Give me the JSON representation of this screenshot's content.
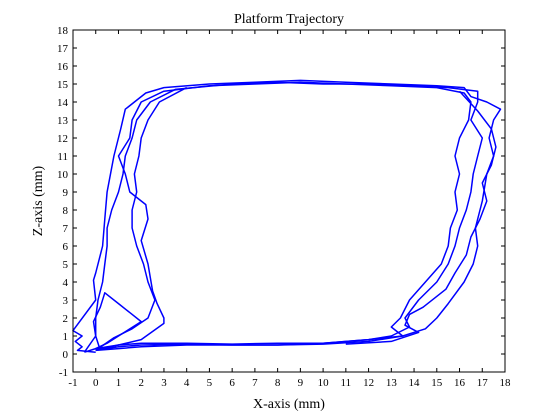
{
  "chart_data": {
    "type": "line",
    "title": "Platform Trajectory",
    "xlabel": "X-axis (mm)",
    "ylabel": "Z-axis (mm)",
    "xlim": [
      -1,
      18
    ],
    "ylim": [
      -1,
      18
    ],
    "xticks": [
      -1,
      0,
      1,
      2,
      3,
      4,
      5,
      6,
      7,
      8,
      9,
      10,
      11,
      12,
      13,
      14,
      15,
      16,
      17,
      18
    ],
    "yticks": [
      -1,
      0,
      1,
      2,
      3,
      4,
      5,
      6,
      7,
      8,
      9,
      10,
      11,
      12,
      13,
      14,
      15,
      16,
      17,
      18
    ],
    "grid": false,
    "series": [
      {
        "color": "#0000ff",
        "points": [
          [
            0.0,
            0.1
          ],
          [
            -0.8,
            0.2
          ],
          [
            -0.6,
            0.4
          ],
          [
            -0.9,
            0.7
          ],
          [
            -0.6,
            1.0
          ],
          [
            -1.0,
            1.3
          ],
          [
            0.0,
            3.0
          ],
          [
            -0.1,
            4.1
          ],
          [
            0.0,
            4.5
          ],
          [
            0.3,
            6.0
          ],
          [
            0.4,
            7.5
          ],
          [
            0.5,
            9.0
          ],
          [
            0.8,
            11.0
          ],
          [
            1.1,
            12.5
          ],
          [
            1.3,
            13.6
          ],
          [
            2.2,
            14.5
          ],
          [
            3.0,
            14.8
          ],
          [
            5.0,
            15.0
          ],
          [
            7.0,
            15.1
          ],
          [
            9.0,
            15.2
          ],
          [
            11.0,
            15.1
          ],
          [
            13.0,
            15.0
          ],
          [
            15.0,
            14.9
          ],
          [
            16.2,
            14.8
          ],
          [
            16.5,
            14.3
          ],
          [
            17.2,
            14.0
          ],
          [
            17.8,
            13.6
          ],
          [
            17.5,
            13.0
          ],
          [
            17.3,
            12.0
          ],
          [
            17.5,
            11.0
          ],
          [
            17.2,
            10.0
          ],
          [
            17.0,
            8.5
          ],
          [
            16.7,
            7.0
          ],
          [
            16.8,
            6.0
          ],
          [
            16.6,
            5.0
          ],
          [
            16.2,
            4.0
          ],
          [
            15.5,
            2.8
          ],
          [
            15.0,
            2.0
          ],
          [
            14.5,
            1.4
          ],
          [
            13.5,
            1.0
          ],
          [
            12.0,
            0.7
          ],
          [
            10.0,
            0.55
          ],
          [
            8.0,
            0.5
          ],
          [
            6.0,
            0.5
          ],
          [
            4.0,
            0.55
          ],
          [
            2.0,
            0.5
          ],
          [
            1.0,
            0.4
          ],
          [
            0.0,
            0.2
          ]
        ]
      },
      {
        "color": "#0000ff",
        "points": [
          [
            0.0,
            0.2
          ],
          [
            1.0,
            0.5
          ],
          [
            2.0,
            0.8
          ],
          [
            3.0,
            1.7
          ],
          [
            3.0,
            2.0
          ],
          [
            2.7,
            2.8
          ],
          [
            2.5,
            3.5
          ],
          [
            2.3,
            5.0
          ],
          [
            2.0,
            6.3
          ],
          [
            2.3,
            7.5
          ],
          [
            2.2,
            8.3
          ],
          [
            1.5,
            9.0
          ],
          [
            1.3,
            10.0
          ],
          [
            1.0,
            11.0
          ],
          [
            1.5,
            12.0
          ],
          [
            1.6,
            13.0
          ],
          [
            2.0,
            14.0
          ],
          [
            3.0,
            14.6
          ],
          [
            5.0,
            14.9
          ],
          [
            7.0,
            15.0
          ],
          [
            9.0,
            15.1
          ],
          [
            11.0,
            15.0
          ],
          [
            13.0,
            14.9
          ],
          [
            15.0,
            14.8
          ],
          [
            16.2,
            14.5
          ],
          [
            16.5,
            14.0
          ],
          [
            16.4,
            13.0
          ],
          [
            16.0,
            12.0
          ],
          [
            15.8,
            11.0
          ],
          [
            16.0,
            10.0
          ],
          [
            15.8,
            9.0
          ],
          [
            15.9,
            8.0
          ],
          [
            15.6,
            7.0
          ],
          [
            15.5,
            6.0
          ],
          [
            15.2,
            5.0
          ],
          [
            14.5,
            4.0
          ],
          [
            13.8,
            3.0
          ],
          [
            13.4,
            2.0
          ],
          [
            13.0,
            1.5
          ],
          [
            13.5,
            1.0
          ],
          [
            12.0,
            0.8
          ],
          [
            10.0,
            0.6
          ],
          [
            8.0,
            0.5
          ],
          [
            6.0,
            0.5
          ],
          [
            4.0,
            0.5
          ],
          [
            2.0,
            0.4
          ],
          [
            1.0,
            0.3
          ],
          [
            0.0,
            0.2
          ]
        ]
      },
      {
        "color": "#0000ff",
        "points": [
          [
            -0.5,
            0.1
          ],
          [
            0.0,
            1.0
          ],
          [
            0.0,
            2.0
          ],
          [
            0.1,
            3.0
          ],
          [
            0.3,
            4.0
          ],
          [
            0.4,
            5.0
          ],
          [
            0.5,
            6.0
          ],
          [
            0.5,
            7.0
          ],
          [
            0.7,
            8.0
          ],
          [
            1.0,
            9.0
          ],
          [
            1.2,
            10.0
          ],
          [
            1.3,
            11.0
          ],
          [
            1.6,
            12.0
          ],
          [
            1.8,
            13.0
          ],
          [
            2.4,
            14.0
          ],
          [
            3.5,
            14.7
          ],
          [
            6.0,
            15.0
          ],
          [
            8.0,
            15.1
          ],
          [
            10.0,
            15.0
          ],
          [
            12.0,
            15.0
          ],
          [
            14.0,
            14.9
          ],
          [
            15.5,
            14.8
          ],
          [
            16.8,
            14.6
          ],
          [
            16.8,
            14.0
          ],
          [
            16.5,
            13.0
          ],
          [
            17.0,
            12.0
          ],
          [
            16.8,
            11.0
          ],
          [
            16.6,
            10.0
          ],
          [
            16.5,
            9.0
          ],
          [
            16.3,
            8.0
          ],
          [
            16.0,
            7.0
          ],
          [
            15.8,
            6.0
          ],
          [
            15.5,
            5.0
          ],
          [
            15.0,
            4.0
          ],
          [
            14.2,
            3.0
          ],
          [
            13.6,
            2.0
          ],
          [
            13.8,
            1.5
          ],
          [
            13.0,
            1.0
          ],
          [
            12.0,
            0.8
          ],
          [
            10.0,
            0.6
          ],
          [
            8.0,
            0.6
          ],
          [
            6.0,
            0.55
          ],
          [
            4.0,
            0.6
          ],
          [
            2.0,
            0.6
          ],
          [
            1.0,
            0.5
          ],
          [
            0.0,
            0.3
          ],
          [
            -0.5,
            0.1
          ]
        ]
      },
      {
        "color": "#0000ff",
        "points": [
          [
            0.2,
            0.2
          ],
          [
            0.0,
            1.0
          ],
          [
            -0.1,
            1.8
          ],
          [
            0.2,
            2.6
          ],
          [
            0.4,
            3.4
          ],
          [
            1.0,
            2.8
          ],
          [
            1.5,
            2.3
          ],
          [
            2.0,
            1.8
          ],
          [
            1.0,
            1.0
          ],
          [
            0.5,
            0.6
          ],
          [
            0.0,
            0.3
          ]
        ]
      },
      {
        "color": "#0000ff",
        "points": [
          [
            0.0,
            0.2
          ],
          [
            0.8,
            0.9
          ],
          [
            1.6,
            1.4
          ],
          [
            2.3,
            2.0
          ],
          [
            2.6,
            3.0
          ],
          [
            2.3,
            4.0
          ],
          [
            2.1,
            5.0
          ],
          [
            1.8,
            6.0
          ],
          [
            1.6,
            7.0
          ],
          [
            1.6,
            8.0
          ],
          [
            1.8,
            9.0
          ],
          [
            1.7,
            10.0
          ],
          [
            1.9,
            11.0
          ],
          [
            2.0,
            12.0
          ],
          [
            2.3,
            13.0
          ],
          [
            2.8,
            14.0
          ],
          [
            4.0,
            14.8
          ]
        ]
      },
      {
        "color": "#0000ff",
        "points": [
          [
            16.0,
            14.6
          ],
          [
            16.8,
            13.5
          ],
          [
            17.4,
            12.5
          ],
          [
            17.6,
            11.5
          ],
          [
            17.4,
            10.5
          ],
          [
            17.0,
            9.5
          ],
          [
            17.2,
            8.5
          ],
          [
            16.9,
            7.5
          ],
          [
            16.5,
            6.5
          ],
          [
            16.3,
            5.5
          ],
          [
            15.8,
            4.5
          ],
          [
            15.4,
            3.6
          ],
          [
            14.4,
            2.6
          ],
          [
            13.8,
            2.2
          ],
          [
            13.6,
            1.6
          ],
          [
            14.2,
            1.2
          ],
          [
            13.0,
            0.7
          ],
          [
            11.0,
            0.55
          ]
        ]
      }
    ]
  }
}
